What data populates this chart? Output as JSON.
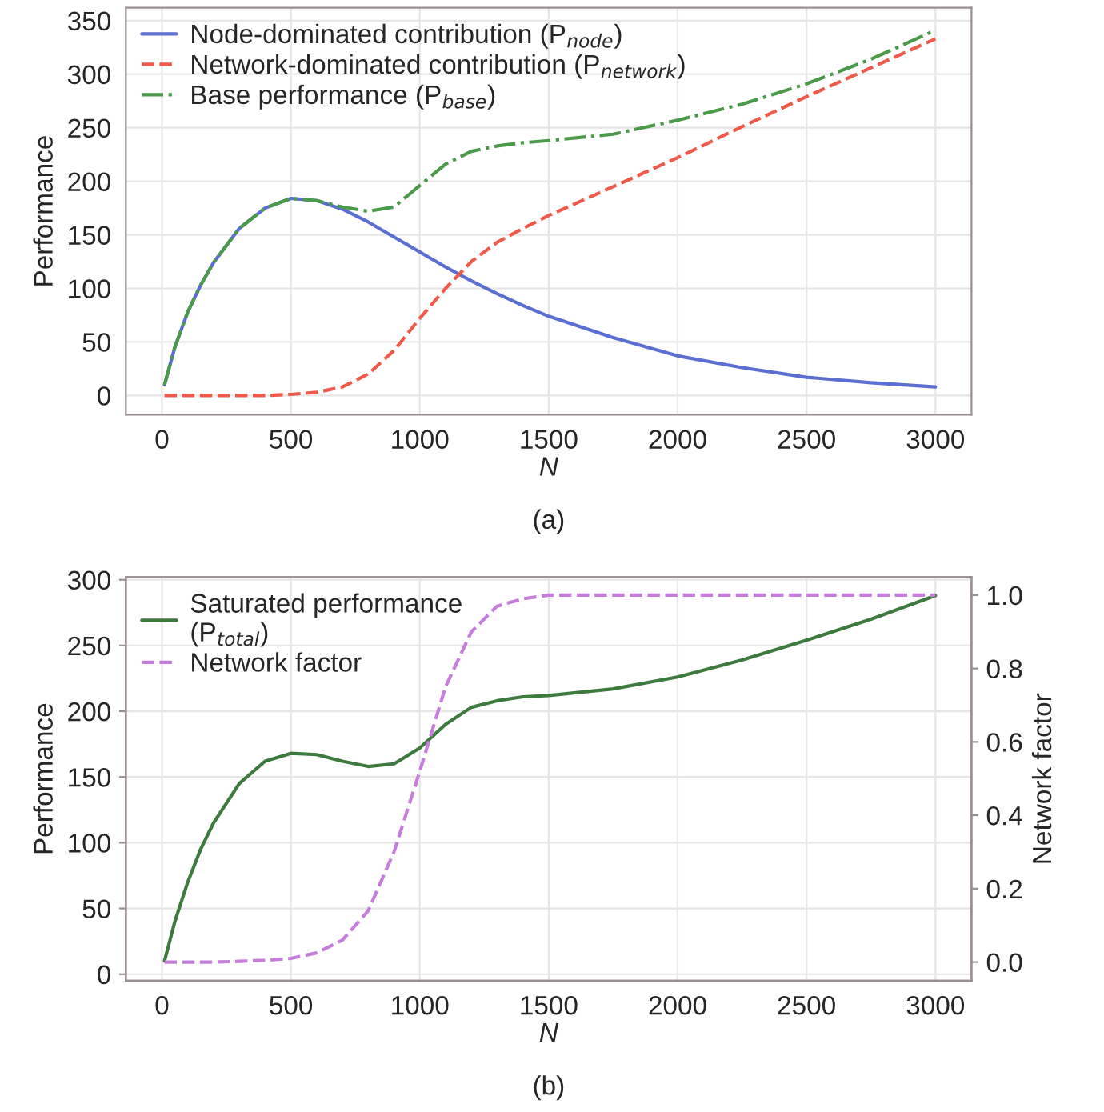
{
  "chart_data": [
    {
      "type": "line",
      "xlabel": "N",
      "ylabel": "Performance",
      "annotations": [
        "(a)"
      ],
      "x": [
        10,
        50,
        100,
        150,
        200,
        300,
        400,
        500,
        600,
        700,
        800,
        900,
        1000,
        1100,
        1200,
        1300,
        1400,
        1500,
        1750,
        2000,
        2250,
        2500,
        2750,
        3000
      ],
      "series": [
        {
          "name": "Node-dominated contribution (P$_{node}$)",
          "color": "#5a6fd1",
          "line_style": "solid",
          "values": [
            10,
            45,
            78,
            103,
            124,
            156,
            175,
            184,
            182,
            174,
            162,
            148,
            134,
            120,
            107,
            95,
            84,
            74,
            54,
            37,
            26,
            17,
            12,
            8
          ]
        },
        {
          "name": "Network-dominated contribution (P$_{network}$)",
          "color": "#ef5a4b",
          "line_style": "dashed",
          "values": [
            0,
            0,
            0,
            0,
            0,
            0,
            0,
            1,
            3,
            8,
            20,
            42,
            72,
            100,
            125,
            143,
            156,
            168,
            195,
            222,
            251,
            279,
            306,
            333
          ]
        },
        {
          "name": "Base performance (P$_{base}$)",
          "color": "#4a9a4a",
          "line_style": "dashdot",
          "values": [
            10,
            45,
            78,
            103,
            124,
            156,
            175,
            184,
            182,
            176,
            172,
            176,
            196,
            216,
            228,
            233,
            236,
            238,
            244,
            257,
            272,
            291,
            314,
            341
          ]
        }
      ],
      "xlim": [
        -140,
        3140
      ],
      "xticks": [
        0,
        500,
        1000,
        1500,
        2000,
        2500,
        3000
      ],
      "ylim": [
        -18,
        362
      ],
      "yticks": [
        0,
        50,
        100,
        150,
        200,
        250,
        300,
        350
      ],
      "grid": true,
      "legend": "top left"
    },
    {
      "type": "line",
      "xlabel": "N",
      "ylabel": "Performance",
      "y2label": "Network factor",
      "annotations": [
        "(b)"
      ],
      "x": [
        10,
        50,
        100,
        150,
        200,
        300,
        400,
        500,
        600,
        700,
        800,
        900,
        1000,
        1100,
        1200,
        1300,
        1400,
        1500,
        1750,
        2000,
        2250,
        2500,
        2750,
        3000
      ],
      "series": [
        {
          "name": "Saturated performance\n(P$_{total}$)",
          "color": "#3d7a3d",
          "line_style": "solid",
          "values": [
            10,
            40,
            70,
            95,
            115,
            145,
            162,
            168,
            167,
            162,
            158,
            160,
            172,
            190,
            203,
            208,
            211,
            212,
            217,
            226,
            239,
            254,
            270,
            288
          ]
        },
        {
          "name": "Network factor",
          "color": "#c77ddb",
          "line_style": "dashed",
          "axis": "y2",
          "values": [
            0,
            0,
            0,
            0,
            0,
            0.002,
            0.005,
            0.01,
            0.025,
            0.06,
            0.14,
            0.3,
            0.52,
            0.75,
            0.9,
            0.97,
            0.99,
            1.0,
            1.0,
            1.0,
            1.0,
            1.0,
            1.0,
            1.0
          ]
        }
      ],
      "xlim": [
        -140,
        3140
      ],
      "xticks": [
        0,
        500,
        1000,
        1500,
        2000,
        2500,
        3000
      ],
      "ylim": [
        -5,
        302
      ],
      "yticks": [
        0,
        50,
        100,
        150,
        200,
        250,
        300
      ],
      "y2lim": [
        -0.051,
        1.049
      ],
      "y2ticks": [
        {
          "value": 0,
          "label": "0.0"
        },
        {
          "value": 0.2,
          "label": "0.2"
        },
        {
          "value": 0.4,
          "label": "0.4"
        },
        {
          "value": 0.6,
          "label": "0.6"
        },
        {
          "value": 0.8,
          "label": "0.8"
        },
        {
          "value": 1.0,
          "label": "1.0"
        }
      ],
      "grid": true,
      "legend": "top left"
    }
  ]
}
